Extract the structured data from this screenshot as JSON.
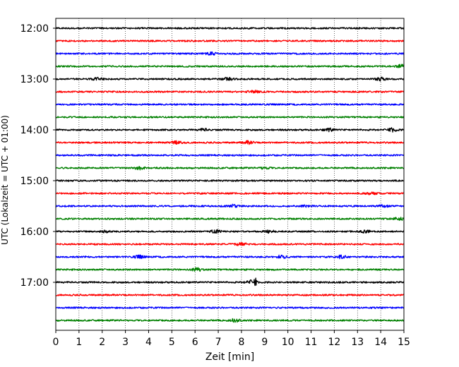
{
  "chart_data": {
    "type": "line",
    "title": "",
    "xlabel": "Zeit  [min]",
    "ylabel": "UTC (Lokalzeit = UTC + 01:00)",
    "xlim": [
      0,
      15
    ],
    "x_ticks": [
      "0",
      "1",
      "2",
      "3",
      "4",
      "5",
      "6",
      "7",
      "8",
      "9",
      "10",
      "11",
      "12",
      "13",
      "14",
      "15"
    ],
    "y_ticks": [
      "12:00",
      "13:00",
      "14:00",
      "15:00",
      "16:00",
      "17:00"
    ],
    "x_grid": "dotted",
    "trace_minutes": 15,
    "colors": [
      "#000000",
      "#ff0000",
      "#0000ff",
      "#008000"
    ],
    "traces": [
      {
        "start": "12:00",
        "color": "#000000",
        "events": []
      },
      {
        "start": "12:15",
        "color": "#ff0000",
        "events": []
      },
      {
        "start": "12:30",
        "color": "#0000ff",
        "events": [
          {
            "t": 6.7,
            "amp": 1.6
          }
        ]
      },
      {
        "start": "12:45",
        "color": "#008000",
        "events": [
          {
            "t": 14.9,
            "amp": 2.0
          }
        ]
      },
      {
        "start": "13:00",
        "color": "#000000",
        "events": [
          {
            "t": 1.8,
            "amp": 1.6
          },
          {
            "t": 7.4,
            "amp": 1.8
          },
          {
            "t": 14.0,
            "amp": 2.0
          }
        ]
      },
      {
        "start": "13:15",
        "color": "#ff0000",
        "events": [
          {
            "t": 8.5,
            "amp": 1.8
          }
        ]
      },
      {
        "start": "13:30",
        "color": "#0000ff",
        "events": []
      },
      {
        "start": "13:45",
        "color": "#008000",
        "events": []
      },
      {
        "start": "14:00",
        "color": "#000000",
        "events": [
          {
            "t": 6.4,
            "amp": 1.4
          },
          {
            "t": 11.8,
            "amp": 1.8
          },
          {
            "t": 14.5,
            "amp": 2.2
          }
        ]
      },
      {
        "start": "14:15",
        "color": "#ff0000",
        "events": [
          {
            "t": 5.2,
            "amp": 1.8
          },
          {
            "t": 8.3,
            "amp": 2.0
          }
        ]
      },
      {
        "start": "14:30",
        "color": "#0000ff",
        "events": []
      },
      {
        "start": "14:45",
        "color": "#008000",
        "events": [
          {
            "t": 3.6,
            "amp": 1.8
          },
          {
            "t": 9.0,
            "amp": 1.2
          }
        ]
      },
      {
        "start": "15:00",
        "color": "#000000",
        "events": []
      },
      {
        "start": "15:15",
        "color": "#ff0000",
        "events": [
          {
            "t": 13.6,
            "amp": 1.4
          }
        ]
      },
      {
        "start": "15:30",
        "color": "#0000ff",
        "events": [
          {
            "t": 7.6,
            "amp": 1.6
          },
          {
            "t": 10.8,
            "amp": 1.2
          },
          {
            "t": 14.1,
            "amp": 1.4
          }
        ]
      },
      {
        "start": "15:45",
        "color": "#008000",
        "events": [
          {
            "t": 14.8,
            "amp": 1.6
          }
        ]
      },
      {
        "start": "16:00",
        "color": "#000000",
        "events": [
          {
            "t": 2.2,
            "amp": 1.4
          },
          {
            "t": 6.9,
            "amp": 1.8
          },
          {
            "t": 9.2,
            "amp": 1.6
          },
          {
            "t": 13.3,
            "amp": 1.8
          }
        ]
      },
      {
        "start": "16:15",
        "color": "#ff0000",
        "events": [
          {
            "t": 8.0,
            "amp": 2.0
          }
        ]
      },
      {
        "start": "16:30",
        "color": "#0000ff",
        "events": [
          {
            "t": 3.6,
            "amp": 1.8
          },
          {
            "t": 9.7,
            "amp": 1.8
          },
          {
            "t": 12.3,
            "amp": 1.8
          }
        ]
      },
      {
        "start": "16:45",
        "color": "#008000",
        "events": [
          {
            "t": 6.1,
            "amp": 2.0
          }
        ]
      },
      {
        "start": "17:00",
        "color": "#000000",
        "events": [
          {
            "t": 8.4,
            "amp": 2.4
          },
          {
            "t": 8.6,
            "amp": 5.5
          }
        ]
      },
      {
        "start": "17:15",
        "color": "#ff0000",
        "events": []
      },
      {
        "start": "17:30",
        "color": "#0000ff",
        "events": []
      },
      {
        "start": "17:45",
        "color": "#008000",
        "events": [
          {
            "t": 7.7,
            "amp": 2.0
          }
        ]
      }
    ]
  }
}
